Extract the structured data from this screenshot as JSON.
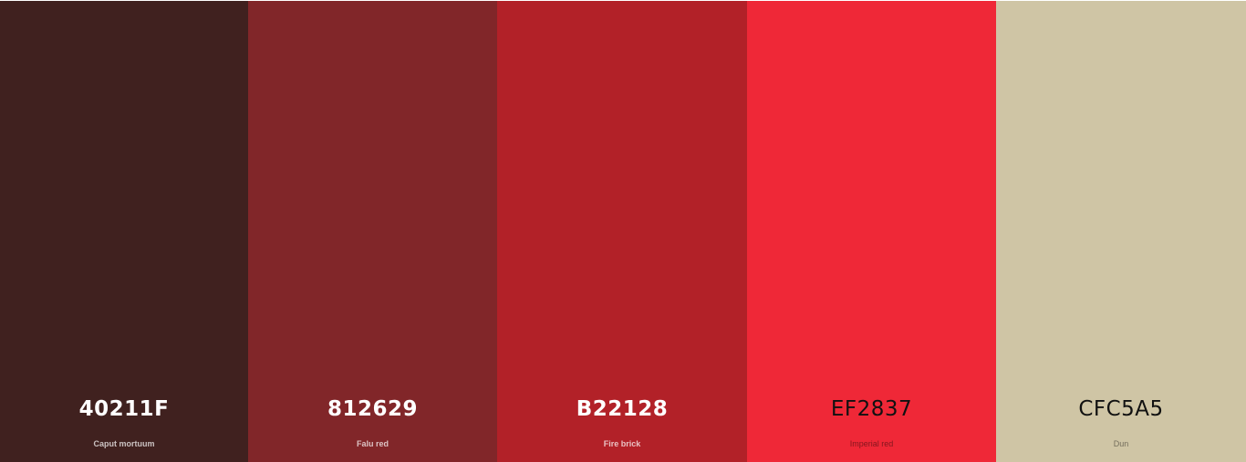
{
  "palette": {
    "swatches": [
      {
        "hex": "40211F",
        "name": "Caput mortuum",
        "color": "#40211F"
      },
      {
        "hex": "812629",
        "name": "Falu red",
        "color": "#812629"
      },
      {
        "hex": "B22128",
        "name": "Fire brick",
        "color": "#B22128"
      },
      {
        "hex": "EF2837",
        "name": "Imperial red",
        "color": "#EF2837"
      },
      {
        "hex": "CFC5A5",
        "name": "Dun",
        "color": "#CFC5A5"
      }
    ]
  }
}
